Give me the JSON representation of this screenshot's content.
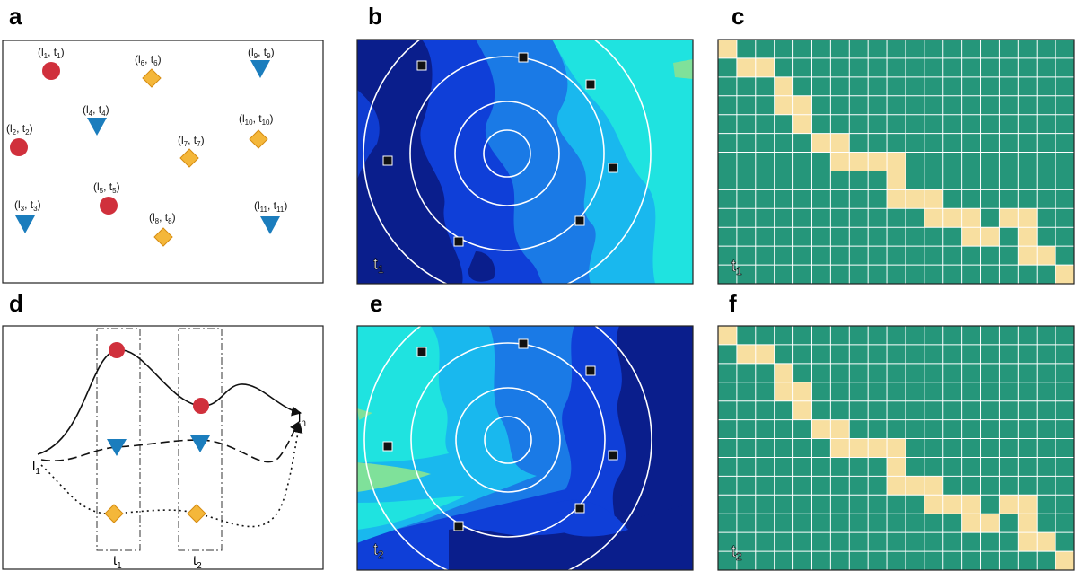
{
  "panels": [
    {
      "letter": "a"
    },
    {
      "letter": "b"
    },
    {
      "letter": "c"
    },
    {
      "letter": "d"
    },
    {
      "letter": "e"
    },
    {
      "letter": "f"
    }
  ],
  "colors": {
    "circle": "#d0303c",
    "triangle": "#1b7dbd",
    "diamond": "#f4b73a",
    "diamond_stroke": "#d68c12",
    "grid_bg": "#25967a",
    "grid_on": "#f8dfa0",
    "grid_line": "#ffffff",
    "contour_dark": "#0a1e8c",
    "contour_mid": "#0f3fd8",
    "contour_blue": "#1a7ae6",
    "contour_light": "#19b8ee",
    "contour_cyan": "#1fe3e0",
    "contour_green": "#7fe19a"
  },
  "panel_a": {
    "points": [
      {
        "shape": "circle",
        "label": "(l1, t1)",
        "sub1": "1",
        "sub2": "1"
      },
      {
        "shape": "circle",
        "label": "(l2, t2)",
        "sub1": "2",
        "sub2": "2"
      },
      {
        "shape": "triangle",
        "label": "(l3, t3)",
        "sub1": "3",
        "sub2": "3"
      },
      {
        "shape": "triangle",
        "label": "(l4, t4)",
        "sub1": "4",
        "sub2": "4"
      },
      {
        "shape": "circle",
        "label": "(l5, t5)",
        "sub1": "5",
        "sub2": "5"
      },
      {
        "shape": "diamond",
        "label": "(l6, t6)",
        "sub1": "6",
        "sub2": "6"
      },
      {
        "shape": "diamond",
        "label": "(l7, t7)",
        "sub1": "7",
        "sub2": "7"
      },
      {
        "shape": "diamond",
        "label": "(l8, t8)",
        "sub1": "8",
        "sub2": "8"
      },
      {
        "shape": "triangle",
        "label": "(l9, t9)",
        "sub1": "9",
        "sub2": "9"
      },
      {
        "shape": "diamond",
        "label": "(l10, t10)",
        "sub1": "10",
        "sub2": "10"
      },
      {
        "shape": "triangle",
        "label": "(l11, t11)",
        "sub1": "11",
        "sub2": "11"
      }
    ]
  },
  "panel_d": {
    "start_label": "l",
    "start_sub": "1",
    "end_label": "l",
    "end_sub": "n",
    "time_labels": [
      {
        "t": "t",
        "sub": "1"
      },
      {
        "t": "t",
        "sub": "2"
      }
    ]
  },
  "panel_b": {
    "time_label": "t",
    "time_sub": "1"
  },
  "panel_e": {
    "time_label": "t",
    "time_sub": "2"
  },
  "panel_c": {
    "time_label": "t",
    "time_sub": "1",
    "grid_cols": 19,
    "grid_rows": 13,
    "cells": [
      [
        0,
        0
      ],
      [
        1,
        1
      ],
      [
        2,
        1
      ],
      [
        3,
        2
      ],
      [
        3,
        3
      ],
      [
        4,
        3
      ],
      [
        4,
        4
      ],
      [
        5,
        5
      ],
      [
        6,
        5
      ],
      [
        6,
        6
      ],
      [
        7,
        6
      ],
      [
        8,
        6
      ],
      [
        9,
        6
      ],
      [
        9,
        7
      ],
      [
        9,
        8
      ],
      [
        10,
        8
      ],
      [
        11,
        8
      ],
      [
        11,
        9
      ],
      [
        12,
        9
      ],
      [
        13,
        9
      ],
      [
        13,
        10
      ],
      [
        14,
        10
      ],
      [
        15,
        9
      ],
      [
        16,
        9
      ],
      [
        16,
        10
      ],
      [
        16,
        11
      ],
      [
        17,
        11
      ],
      [
        18,
        12
      ]
    ]
  },
  "panel_f": {
    "time_label": "t",
    "time_sub": "2",
    "grid_cols": 19,
    "grid_rows": 13,
    "cells": [
      [
        0,
        0
      ],
      [
        1,
        1
      ],
      [
        2,
        1
      ],
      [
        3,
        2
      ],
      [
        3,
        3
      ],
      [
        4,
        3
      ],
      [
        4,
        4
      ],
      [
        5,
        5
      ],
      [
        6,
        5
      ],
      [
        6,
        6
      ],
      [
        7,
        6
      ],
      [
        8,
        6
      ],
      [
        9,
        6
      ],
      [
        9,
        7
      ],
      [
        9,
        8
      ],
      [
        10,
        8
      ],
      [
        11,
        8
      ],
      [
        11,
        9
      ],
      [
        12,
        9
      ],
      [
        13,
        9
      ],
      [
        13,
        10
      ],
      [
        14,
        10
      ],
      [
        15,
        9
      ],
      [
        16,
        9
      ],
      [
        16,
        10
      ],
      [
        16,
        11
      ],
      [
        17,
        11
      ],
      [
        18,
        12
      ]
    ]
  }
}
